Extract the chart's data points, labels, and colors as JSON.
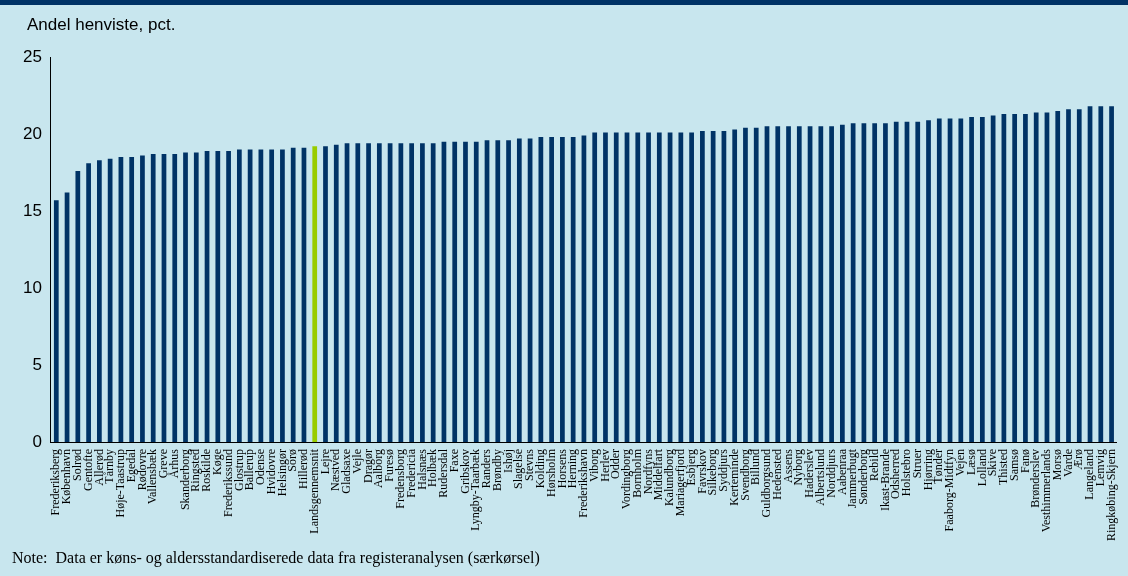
{
  "chart_data": {
    "type": "bar",
    "ylabel": "Andel henviste, pct.",
    "categories": [
      "Frederiksberg",
      "København",
      "Solrød",
      "Gentofte",
      "Allerød",
      "Tårnby",
      "Høje-Taastrup",
      "Egedal",
      "Rødovre",
      "Vallensbæk",
      "Greve",
      "Århus",
      "Skanderborg",
      "Ringsted",
      "Roskilde",
      "Køge",
      "Frederikssund",
      "Glostrup",
      "Ballerup",
      "Odense",
      "Hvidovre",
      "Helsingør",
      "Sorø",
      "Hillerød",
      "Landsgennemsnit",
      "Lejre",
      "Næstved",
      "Gladsaxe",
      "Vejle",
      "Dragør",
      "Aalborg",
      "Furesø",
      "Fredensborg",
      "Fredericia",
      "Halsnæs",
      "Holbæk",
      "Rudersdal",
      "Faxe",
      "Gribskov",
      "Lyngby-Taarbæk",
      "Randers",
      "Brøndby",
      "Ishøj",
      "Slagelse",
      "Stevns",
      "Kolding",
      "Hørsholm",
      "Horsens",
      "Herning",
      "Frederikshavn",
      "Viborg",
      "Herlev",
      "Odder",
      "Vordingborg",
      "Bornholm",
      "Nordfyns",
      "Middelfart",
      "Kalundborg",
      "Mariagerfjord",
      "Esbjerg",
      "Favrskov",
      "Silkeborg",
      "Syddjurs",
      "Kerteminde",
      "Svendborg",
      "Billund",
      "Guldborgsund",
      "Hedensted",
      "Assens",
      "Nyborg",
      "Haderslev",
      "Albertslund",
      "Norddjurs",
      "Aabenraa",
      "Jammerbugt",
      "Sønderborg",
      "Rebild",
      "Ikast-Brande",
      "Odsherred",
      "Holstebro",
      "Struer",
      "Hjørring",
      "Tønder",
      "Faaborg-Midtfyn",
      "Vejen",
      "Læsø",
      "Lolland",
      "Skive",
      "Thisted",
      "Samsø",
      "Fanø",
      "Brønderslev",
      "Vesthimmerlands",
      "Morsø",
      "Varde",
      "Ærø",
      "Langeland",
      "Lemvig",
      "Ringkøbing-Skjern"
    ],
    "values": [
      15.7,
      16.2,
      17.6,
      18.1,
      18.3,
      18.4,
      18.5,
      18.5,
      18.6,
      18.7,
      18.7,
      18.7,
      18.8,
      18.8,
      18.9,
      18.9,
      18.9,
      19.0,
      19.0,
      19.0,
      19.0,
      19.0,
      19.1,
      19.1,
      19.2,
      19.2,
      19.3,
      19.4,
      19.4,
      19.4,
      19.4,
      19.4,
      19.4,
      19.4,
      19.4,
      19.4,
      19.5,
      19.5,
      19.5,
      19.5,
      19.6,
      19.6,
      19.6,
      19.7,
      19.7,
      19.8,
      19.8,
      19.8,
      19.8,
      19.9,
      20.1,
      20.1,
      20.1,
      20.1,
      20.1,
      20.1,
      20.1,
      20.1,
      20.1,
      20.1,
      20.2,
      20.2,
      20.2,
      20.3,
      20.4,
      20.4,
      20.5,
      20.5,
      20.5,
      20.5,
      20.5,
      20.5,
      20.5,
      20.6,
      20.7,
      20.7,
      20.7,
      20.7,
      20.8,
      20.8,
      20.8,
      20.9,
      21.0,
      21.0,
      21.0,
      21.1,
      21.1,
      21.2,
      21.3,
      21.3,
      21.3,
      21.4,
      21.4,
      21.5,
      21.6,
      21.6,
      21.8,
      21.8,
      21.8
    ],
    "colors": [
      "#003366",
      "#003366",
      "#003366",
      "#003366",
      "#003366",
      "#003366",
      "#003366",
      "#003366",
      "#003366",
      "#003366",
      "#003366",
      "#003366",
      "#003366",
      "#003366",
      "#003366",
      "#003366",
      "#003366",
      "#003366",
      "#003366",
      "#003366",
      "#003366",
      "#003366",
      "#003366",
      "#003366",
      "#99cc00",
      "#003366",
      "#003366",
      "#003366",
      "#003366",
      "#003366",
      "#003366",
      "#003366",
      "#003366",
      "#003366",
      "#003366",
      "#003366",
      "#003366",
      "#003366",
      "#003366",
      "#003366",
      "#003366",
      "#003366",
      "#003366",
      "#003366",
      "#003366",
      "#003366",
      "#003366",
      "#003366",
      "#003366",
      "#003366",
      "#003366",
      "#003366",
      "#003366",
      "#003366",
      "#003366",
      "#003366",
      "#003366",
      "#003366",
      "#003366",
      "#003366",
      "#003366",
      "#003366",
      "#003366",
      "#003366",
      "#003366",
      "#003366",
      "#003366",
      "#003366",
      "#003366",
      "#003366",
      "#003366",
      "#003366",
      "#003366",
      "#003366",
      "#003366",
      "#003366",
      "#003366",
      "#003366",
      "#003366",
      "#003366",
      "#003366",
      "#003366",
      "#003366",
      "#003366",
      "#003366",
      "#003366",
      "#003366",
      "#003366",
      "#003366",
      "#003366",
      "#003366",
      "#003366",
      "#003366",
      "#003366",
      "#003366",
      "#003366",
      "#003366",
      "#003366",
      "#003366"
    ],
    "ylim": [
      0,
      25
    ],
    "yticks": [
      0,
      5,
      10,
      15,
      20,
      25
    ],
    "grid": false,
    "legend": false,
    "annotations": [
      "Note:  Data er køns- og aldersstandardiserede data fra registeranalysen (særkørsel)"
    ]
  }
}
